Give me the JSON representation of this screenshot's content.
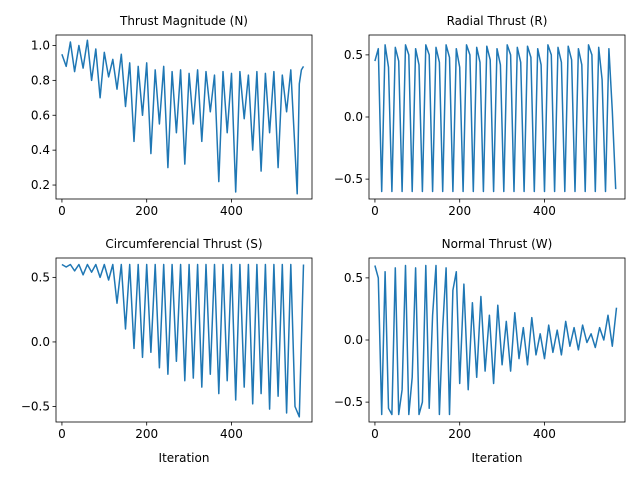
{
  "figure": {
    "background": "#ffffff",
    "line_color": "#1f77b4"
  },
  "chart_data": [
    {
      "type": "line",
      "title": "Thrust Magnitude (N)",
      "xlabel": "",
      "ylabel": "",
      "xlim": [
        -14,
        590
      ],
      "ylim": [
        0.12,
        1.06
      ],
      "xticks": [
        0,
        200,
        400
      ],
      "yticks": [
        0.2,
        0.4,
        0.6,
        0.8,
        1.0
      ],
      "ytick_labels": [
        "0.2",
        "0.4",
        "0.6",
        "0.8",
        "1.0"
      ],
      "series": [
        {
          "x": [
            0,
            10,
            20,
            30,
            40,
            50,
            60,
            70,
            80,
            90,
            100,
            110,
            120,
            130,
            140,
            150,
            160,
            170,
            180,
            190,
            200,
            210,
            220,
            230,
            240,
            250,
            260,
            270,
            280,
            290,
            300,
            310,
            320,
            330,
            340,
            350,
            360,
            370,
            380,
            390,
            400,
            410,
            420,
            430,
            440,
            450,
            460,
            470,
            480,
            490,
            500,
            510,
            520,
            530,
            540,
            550,
            555,
            560,
            565,
            570
          ],
          "y": [
            0.95,
            0.88,
            1.02,
            0.85,
            1.0,
            0.87,
            1.03,
            0.8,
            0.98,
            0.7,
            0.96,
            0.82,
            0.92,
            0.75,
            0.95,
            0.65,
            0.9,
            0.45,
            0.88,
            0.6,
            0.9,
            0.38,
            0.86,
            0.55,
            0.88,
            0.3,
            0.85,
            0.5,
            0.86,
            0.32,
            0.84,
            0.55,
            0.86,
            0.45,
            0.85,
            0.62,
            0.83,
            0.22,
            0.85,
            0.5,
            0.84,
            0.16,
            0.85,
            0.58,
            0.83,
            0.4,
            0.85,
            0.28,
            0.84,
            0.5,
            0.85,
            0.3,
            0.83,
            0.62,
            0.86,
            0.4,
            0.15,
            0.78,
            0.86,
            0.88
          ]
        }
      ]
    },
    {
      "type": "line",
      "title": "Radial Thrust (R)",
      "xlabel": "",
      "ylabel": "",
      "xlim": [
        -14,
        590
      ],
      "ylim": [
        -0.66,
        0.66
      ],
      "xticks": [
        0,
        200,
        400
      ],
      "yticks": [
        -0.5,
        0.0,
        0.5
      ],
      "ytick_labels": [
        "−0.5",
        "0.0",
        "0.5"
      ],
      "series": [
        {
          "x": [
            0,
            8,
            16,
            24,
            32,
            40,
            48,
            56,
            64,
            72,
            80,
            88,
            96,
            104,
            112,
            120,
            128,
            136,
            144,
            152,
            160,
            168,
            176,
            184,
            192,
            200,
            208,
            216,
            224,
            232,
            240,
            248,
            256,
            264,
            272,
            280,
            288,
            296,
            304,
            312,
            320,
            328,
            336,
            344,
            352,
            360,
            368,
            376,
            384,
            392,
            400,
            408,
            416,
            424,
            432,
            440,
            448,
            456,
            464,
            472,
            480,
            488,
            496,
            504,
            512,
            520,
            528,
            536,
            544,
            552,
            560,
            568
          ],
          "y": [
            0.45,
            0.55,
            -0.6,
            0.58,
            0.4,
            -0.6,
            0.56,
            0.45,
            -0.6,
            0.58,
            0.5,
            -0.6,
            0.55,
            0.42,
            -0.6,
            0.58,
            0.5,
            -0.6,
            0.56,
            0.44,
            -0.6,
            0.58,
            0.48,
            -0.6,
            0.55,
            0.4,
            -0.6,
            0.58,
            0.5,
            -0.6,
            0.56,
            0.44,
            -0.6,
            0.57,
            0.46,
            -0.6,
            0.55,
            0.42,
            -0.6,
            0.58,
            0.5,
            -0.6,
            0.56,
            0.44,
            -0.6,
            0.57,
            0.48,
            -0.6,
            0.55,
            0.42,
            -0.6,
            0.58,
            0.5,
            -0.6,
            0.56,
            0.44,
            -0.6,
            0.57,
            0.46,
            -0.6,
            0.55,
            0.42,
            -0.6,
            0.58,
            0.5,
            -0.6,
            0.56,
            0.3,
            -0.6,
            0.55,
            0.05,
            -0.58
          ]
        }
      ]
    },
    {
      "type": "line",
      "title": "Circumferencial Thrust (S)",
      "xlabel": "Iteration",
      "ylabel": "",
      "xlim": [
        -14,
        590
      ],
      "ylim": [
        -0.62,
        0.65
      ],
      "xticks": [
        0,
        200,
        400
      ],
      "yticks": [
        -0.5,
        0.0,
        0.5
      ],
      "ytick_labels": [
        "−0.5",
        "0.0",
        "0.5"
      ],
      "series": [
        {
          "x": [
            0,
            10,
            20,
            30,
            40,
            50,
            60,
            70,
            80,
            90,
            100,
            110,
            120,
            130,
            140,
            150,
            160,
            170,
            180,
            190,
            200,
            210,
            220,
            230,
            240,
            250,
            260,
            270,
            280,
            290,
            300,
            310,
            320,
            330,
            340,
            350,
            360,
            370,
            380,
            390,
            400,
            410,
            420,
            430,
            440,
            450,
            460,
            470,
            480,
            490,
            500,
            510,
            520,
            530,
            540,
            550,
            560,
            570
          ],
          "y": [
            0.6,
            0.58,
            0.6,
            0.55,
            0.6,
            0.52,
            0.6,
            0.54,
            0.6,
            0.5,
            0.6,
            0.48,
            0.6,
            0.3,
            0.6,
            0.1,
            0.6,
            -0.05,
            0.6,
            -0.12,
            0.6,
            -0.08,
            0.6,
            -0.2,
            0.6,
            -0.25,
            0.6,
            -0.15,
            0.6,
            -0.3,
            0.6,
            -0.28,
            0.6,
            -0.35,
            0.6,
            -0.25,
            0.6,
            -0.4,
            0.6,
            -0.3,
            0.6,
            -0.45,
            0.6,
            -0.35,
            0.6,
            -0.48,
            0.6,
            -0.4,
            0.6,
            -0.52,
            0.6,
            -0.42,
            0.6,
            -0.55,
            0.6,
            -0.5,
            -0.58,
            0.6
          ]
        }
      ]
    },
    {
      "type": "line",
      "title": "Normal Thrust (W)",
      "xlabel": "Iteration",
      "ylabel": "",
      "xlim": [
        -14,
        590
      ],
      "ylim": [
        -0.66,
        0.66
      ],
      "xticks": [
        0,
        200,
        400
      ],
      "yticks": [
        -0.5,
        0.0,
        0.5
      ],
      "ytick_labels": [
        "−0.5",
        "0.0",
        "0.5"
      ],
      "series": [
        {
          "x": [
            0,
            8,
            16,
            24,
            32,
            40,
            48,
            56,
            64,
            72,
            80,
            88,
            96,
            104,
            112,
            120,
            128,
            136,
            144,
            152,
            160,
            168,
            176,
            184,
            192,
            200,
            210,
            220,
            230,
            240,
            250,
            260,
            270,
            280,
            290,
            300,
            310,
            320,
            330,
            340,
            350,
            360,
            370,
            380,
            390,
            400,
            410,
            420,
            430,
            440,
            450,
            460,
            470,
            480,
            490,
            500,
            510,
            520,
            530,
            540,
            550,
            560,
            570
          ],
          "y": [
            0.6,
            0.5,
            -0.6,
            0.55,
            -0.55,
            -0.6,
            0.58,
            -0.6,
            -0.4,
            0.6,
            -0.6,
            -0.3,
            0.58,
            -0.6,
            -0.5,
            0.6,
            -0.55,
            0.2,
            0.6,
            -0.6,
            0.1,
            0.58,
            -0.6,
            0.4,
            0.55,
            -0.35,
            0.45,
            -0.4,
            0.3,
            -0.3,
            0.35,
            -0.25,
            0.2,
            -0.35,
            0.28,
            -0.2,
            0.15,
            -0.25,
            0.22,
            -0.15,
            0.1,
            -0.2,
            0.18,
            -0.12,
            0.05,
            -0.15,
            0.12,
            -0.1,
            0.08,
            -0.12,
            0.15,
            -0.05,
            0.1,
            -0.08,
            0.12,
            -0.02,
            0.05,
            -0.06,
            0.1,
            0.0,
            0.2,
            -0.05,
            0.26
          ]
        }
      ]
    }
  ]
}
